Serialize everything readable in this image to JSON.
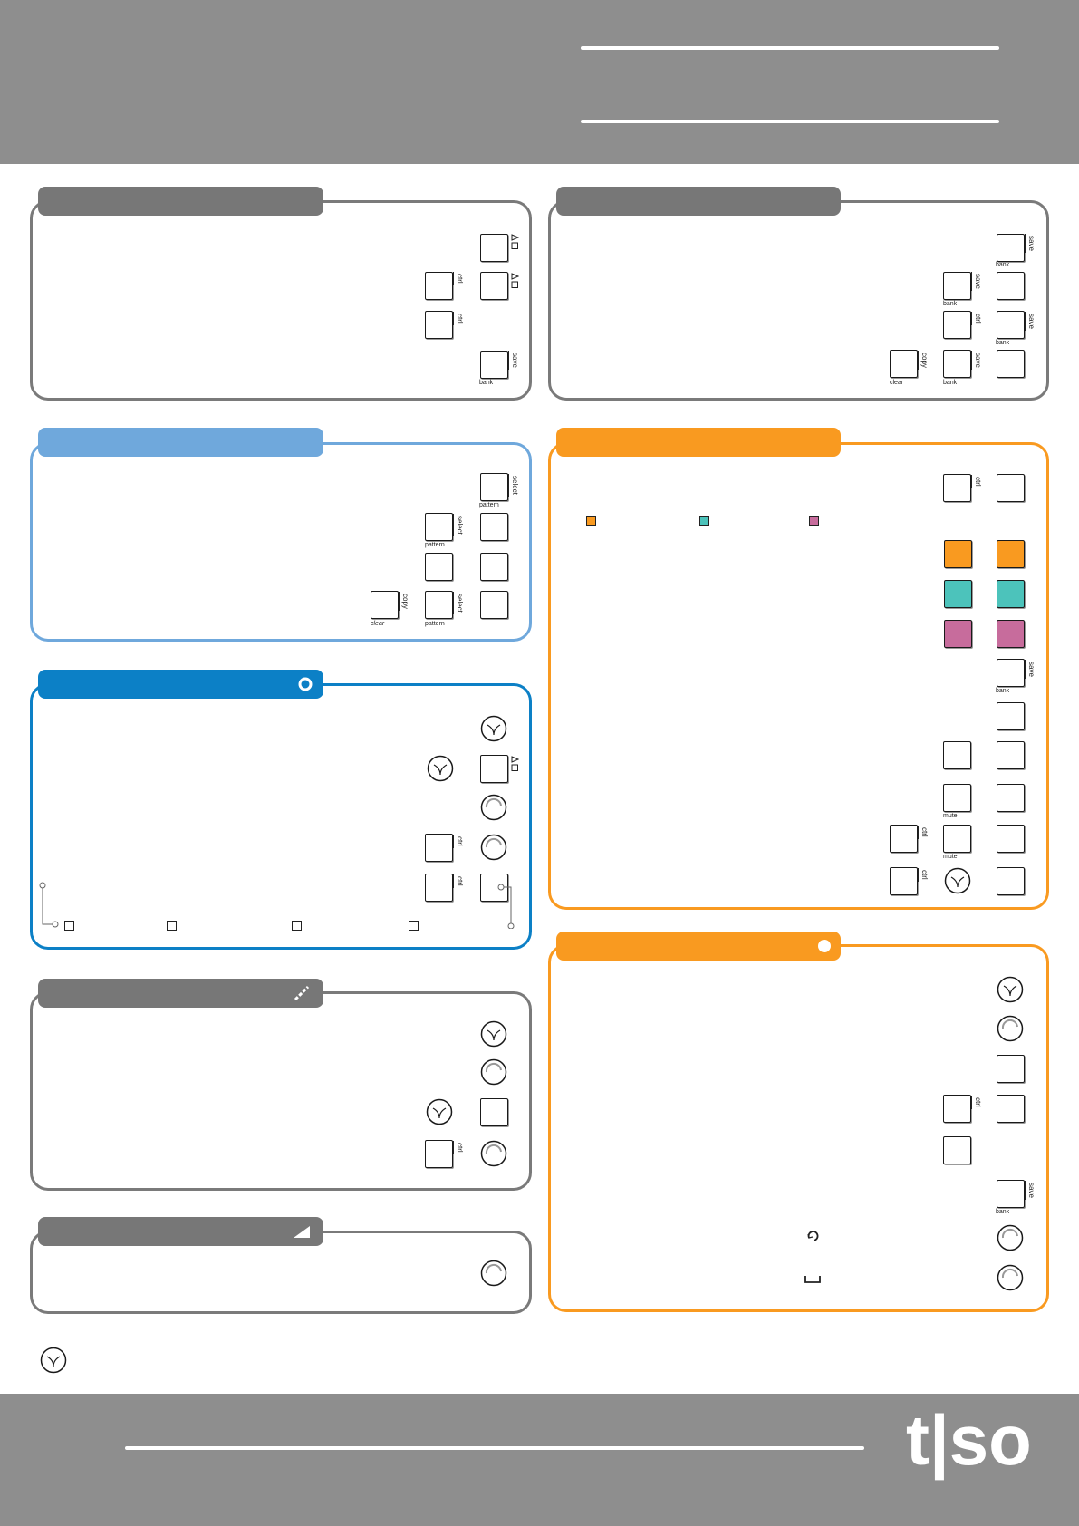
{
  "colors": {
    "band_gray": "#8e8e8e",
    "panel_gray": "#7a7a7a",
    "tab_gray": "#777777",
    "light_blue": "#6fa8dc",
    "blue": "#0c80c6",
    "orange": "#f99a20",
    "teal": "#4cc3bb",
    "magenta": "#c76c9c"
  },
  "labels": {
    "ctrl": "ctrl",
    "save": "save",
    "bank": "bank",
    "copy": "copy",
    "clear": "clear",
    "select": "select",
    "pattern": "pattern",
    "mute": "mute"
  },
  "icons": {
    "encoder": "encoder-icon",
    "knob": "knob-icon",
    "play_stop": "play-stop-icon",
    "ring": "ring-icon",
    "dot": "dot-icon",
    "slider": "slider-icon",
    "ramp": "ramp-icon",
    "rotate": "rotate-icon",
    "bracket": "bracket-icon"
  },
  "logo": "t|so"
}
